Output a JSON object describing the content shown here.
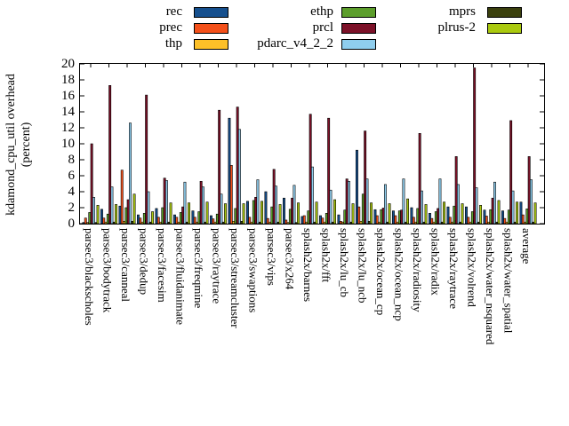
{
  "chart_data": {
    "type": "bar",
    "title": "",
    "ylabel_line1": "kdamond_cpu_util overhead",
    "ylabel_line2": "(percent)",
    "xlabel": "",
    "ylim": [
      0,
      20
    ],
    "yticks": [
      0,
      2,
      4,
      6,
      8,
      10,
      12,
      14,
      16,
      18,
      20
    ],
    "grid": false,
    "legend_position": "top",
    "categories": [
      "parsec3/blackscholes",
      "parsec3/bodytrack",
      "parsec3/canneal",
      "parsec3/dedup",
      "parsec3/facesim",
      "parsec3/fluidanimate",
      "parsec3/freqmine",
      "parsec3/raytrace",
      "parsec3/streamcluster",
      "parsec3/swaptions",
      "parsec3/vips",
      "parsec3/x264",
      "splash2x/barnes",
      "splash2x/fft",
      "splash2x/lu_cb",
      "splash2x/lu_ncb",
      "splash2x/ocean_cp",
      "splash2x/ocean_ncp",
      "splash2x/radiosity",
      "splash2x/radix",
      "splash2x/raytrace",
      "splash2x/volrend",
      "splash2x/water_nsquared",
      "splash2x/water_spatial",
      "average"
    ],
    "series": [
      {
        "name": "rec",
        "color": "#16508e",
        "values": [
          0.15,
          1.8,
          2.2,
          1.1,
          1.9,
          1.1,
          1.6,
          1.0,
          13.2,
          2.8,
          4.0,
          3.2,
          0.9,
          1.0,
          1.1,
          9.2,
          1.75,
          1.6,
          2.0,
          1.3,
          2.1,
          2.1,
          1.7,
          1.6,
          2.7
        ]
      },
      {
        "name": "prec",
        "color": "#f4501a",
        "values": [
          0.7,
          0.7,
          6.7,
          0.7,
          0.8,
          0.8,
          0.8,
          0.6,
          7.3,
          0.8,
          0.65,
          0.45,
          1.0,
          0.7,
          0.3,
          2.1,
          1.0,
          1.0,
          0.8,
          0.65,
          0.8,
          0.8,
          0.95,
          0.65,
          1.1
        ]
      },
      {
        "name": "thp",
        "color": "#fdc028",
        "values": [
          0.15,
          0.2,
          0.3,
          0.2,
          0.2,
          0.2,
          0.2,
          0.2,
          0.3,
          0.2,
          0.2,
          0.15,
          0.2,
          0.2,
          0.2,
          0.3,
          0.2,
          0.2,
          0.2,
          0.2,
          0.2,
          0.2,
          0.2,
          0.2,
          0.2
        ]
      },
      {
        "name": "ethp",
        "color": "#5c9e2c",
        "values": [
          1.4,
          1.2,
          2.0,
          1.3,
          2.0,
          1.4,
          1.5,
          1.2,
          1.9,
          2.9,
          2.1,
          1.8,
          1.6,
          1.3,
          1.7,
          3.7,
          1.75,
          1.6,
          1.9,
          1.5,
          2.2,
          1.5,
          1.75,
          1.7,
          1.85
        ]
      },
      {
        "name": "prcl",
        "color": "#7c1128",
        "values": [
          10.0,
          17.3,
          3.0,
          16.1,
          5.7,
          2.1,
          5.3,
          14.2,
          14.6,
          3.3,
          6.8,
          3.2,
          13.7,
          13.2,
          5.6,
          11.6,
          1.95,
          1.7,
          11.3,
          1.9,
          8.4,
          19.5,
          3.2,
          12.9,
          8.4
        ]
      },
      {
        "name": "pdarc_v4_2_2",
        "color": "#8fceee",
        "values": [
          3.3,
          4.6,
          12.6,
          4.0,
          5.4,
          5.2,
          4.6,
          3.7,
          11.8,
          5.5,
          4.7,
          4.8,
          7.1,
          4.2,
          5.3,
          5.6,
          4.9,
          5.6,
          4.1,
          5.6,
          4.9,
          4.5,
          5.2,
          4.1,
          5.5
        ]
      },
      {
        "name": "mprs",
        "color": "#3b400e",
        "values": [
          0.15,
          0.2,
          0.3,
          0.2,
          0.2,
          0.2,
          0.2,
          0.2,
          0.3,
          0.2,
          0.2,
          0.15,
          0.2,
          0.2,
          0.2,
          0.3,
          0.2,
          0.2,
          0.2,
          0.2,
          0.2,
          0.2,
          0.2,
          0.2,
          0.2
        ]
      },
      {
        "name": "plrus-2",
        "color": "#aac90f",
        "values": [
          2.3,
          2.4,
          3.7,
          1.5,
          2.6,
          2.6,
          2.7,
          2.5,
          2.5,
          2.8,
          2.4,
          2.6,
          2.7,
          3.0,
          2.5,
          2.6,
          2.5,
          3.1,
          2.4,
          2.7,
          2.5,
          2.3,
          2.9,
          2.7,
          2.6
        ]
      }
    ]
  }
}
